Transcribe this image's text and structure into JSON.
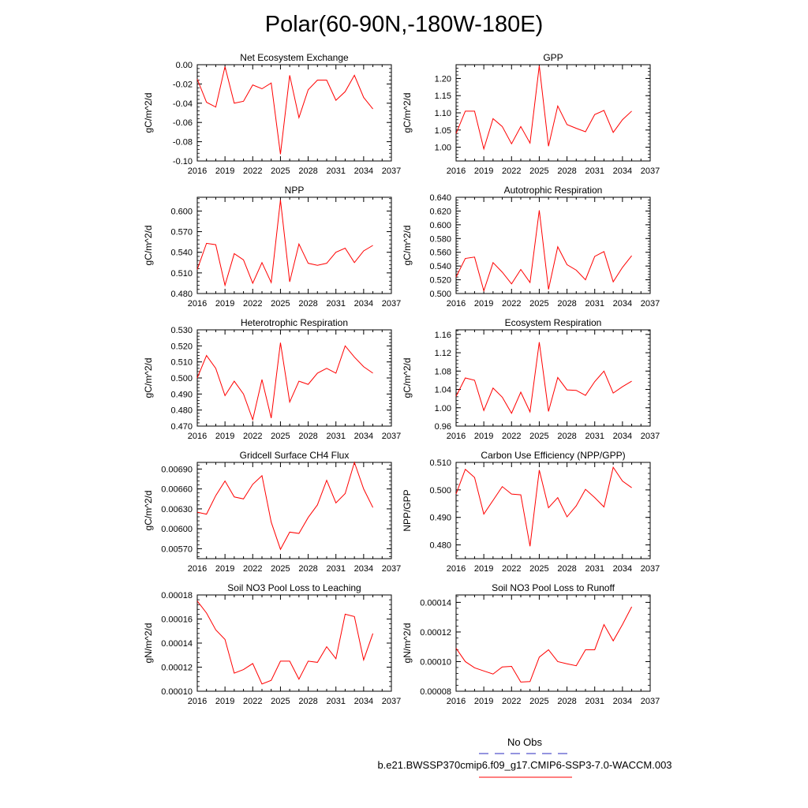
{
  "title": "Polar(60-90N,-180W-180E)",
  "legend": {
    "obs_label": "No Obs",
    "model_label": "b.e21.BWSSP370cmip6.f09_g17.CMIP6-SSP3-7.0-WACCM.003",
    "obs_color": "#5555cc",
    "model_color": "#ff0000"
  },
  "chart_data": [
    {
      "type": "line",
      "title": "Net Ecosystem Exchange",
      "xlabel": "",
      "ylabel": "gC/m^2/d",
      "xlim": [
        2016,
        2037
      ],
      "x_ticks": [
        2016,
        2019,
        2022,
        2025,
        2028,
        2031,
        2034,
        2037
      ],
      "ylim": [
        -0.1,
        0.0
      ],
      "y_ticks": [
        -0.1,
        -0.08,
        -0.06,
        -0.04,
        -0.02,
        0.0
      ],
      "y_tick_labels": [
        "-0.10",
        "-0.08",
        "-0.06",
        "-0.04",
        "-0.02",
        "0.00"
      ],
      "series": [
        {
          "name": "b.e21.BWSSP370cmip6.f09_g17.CMIP6-SSP3-7.0-WACCM.003",
          "color": "#ff0000",
          "x": [
            2016,
            2017,
            2018,
            2019,
            2020,
            2021,
            2022,
            2023,
            2024,
            2025,
            2026,
            2027,
            2028,
            2029,
            2030,
            2031,
            2032,
            2033,
            2034,
            2035
          ],
          "values": [
            -0.015,
            -0.039,
            -0.044,
            -0.002,
            -0.04,
            -0.038,
            -0.021,
            -0.025,
            -0.019,
            -0.093,
            -0.011,
            -0.055,
            -0.026,
            -0.016,
            -0.016,
            -0.037,
            -0.028,
            -0.011,
            -0.034,
            -0.046
          ]
        }
      ]
    },
    {
      "type": "line",
      "title": "GPP",
      "xlabel": "",
      "ylabel": "gC/m^2/d",
      "xlim": [
        2016,
        2037
      ],
      "x_ticks": [
        2016,
        2019,
        2022,
        2025,
        2028,
        2031,
        2034,
        2037
      ],
      "ylim": [
        0.96,
        1.24
      ],
      "y_ticks": [
        1.0,
        1.05,
        1.1,
        1.15,
        1.2
      ],
      "y_tick_labels": [
        "1.00",
        "1.05",
        "1.10",
        "1.15",
        "1.20"
      ],
      "series": [
        {
          "name": "b.e21.BWSSP370cmip6.f09_g17.CMIP6-SSP3-7.0-WACCM.003",
          "color": "#ff0000",
          "x": [
            2016,
            2017,
            2018,
            2019,
            2020,
            2021,
            2022,
            2023,
            2024,
            2025,
            2026,
            2027,
            2028,
            2029,
            2030,
            2031,
            2032,
            2033,
            2034,
            2035
          ],
          "values": [
            1.04,
            1.105,
            1.105,
            0.995,
            1.083,
            1.06,
            1.01,
            1.06,
            1.012,
            1.237,
            1.003,
            1.12,
            1.066,
            1.055,
            1.045,
            1.095,
            1.107,
            1.043,
            1.08,
            1.105
          ]
        }
      ]
    },
    {
      "type": "line",
      "title": "NPP",
      "xlabel": "",
      "ylabel": "gC/m^2/d",
      "xlim": [
        2016,
        2037
      ],
      "x_ticks": [
        2016,
        2019,
        2022,
        2025,
        2028,
        2031,
        2034,
        2037
      ],
      "ylim": [
        0.48,
        0.62
      ],
      "y_ticks": [
        0.48,
        0.51,
        0.54,
        0.57,
        0.6
      ],
      "y_tick_labels": [
        "0.480",
        "0.510",
        "0.540",
        "0.570",
        "0.600"
      ],
      "series": [
        {
          "name": "b.e21.BWSSP370cmip6.f09_g17.CMIP6-SSP3-7.0-WACCM.003",
          "color": "#ff0000",
          "x": [
            2016,
            2017,
            2018,
            2019,
            2020,
            2021,
            2022,
            2023,
            2024,
            2025,
            2026,
            2027,
            2028,
            2029,
            2030,
            2031,
            2032,
            2033,
            2034,
            2035
          ],
          "values": [
            0.515,
            0.553,
            0.551,
            0.492,
            0.538,
            0.529,
            0.495,
            0.525,
            0.496,
            0.616,
            0.497,
            0.552,
            0.524,
            0.521,
            0.524,
            0.54,
            0.546,
            0.525,
            0.542,
            0.55
          ]
        }
      ]
    },
    {
      "type": "line",
      "title": "Autotrophic Respiration",
      "xlabel": "",
      "ylabel": "gC/m^2/d",
      "xlim": [
        2016,
        2037
      ],
      "x_ticks": [
        2016,
        2019,
        2022,
        2025,
        2028,
        2031,
        2034,
        2037
      ],
      "ylim": [
        0.5,
        0.64
      ],
      "y_ticks": [
        0.5,
        0.52,
        0.54,
        0.56,
        0.58,
        0.6,
        0.62,
        0.64
      ],
      "y_tick_labels": [
        "0.500",
        "0.520",
        "0.540",
        "0.560",
        "0.580",
        "0.600",
        "0.620",
        "0.640"
      ],
      "series": [
        {
          "name": "b.e21.BWSSP370cmip6.f09_g17.CMIP6-SSP3-7.0-WACCM.003",
          "color": "#ff0000",
          "x": [
            2016,
            2017,
            2018,
            2019,
            2020,
            2021,
            2022,
            2023,
            2024,
            2025,
            2026,
            2027,
            2028,
            2029,
            2030,
            2031,
            2032,
            2033,
            2034,
            2035
          ],
          "values": [
            0.524,
            0.551,
            0.553,
            0.504,
            0.545,
            0.531,
            0.514,
            0.535,
            0.516,
            0.621,
            0.506,
            0.568,
            0.542,
            0.534,
            0.52,
            0.554,
            0.561,
            0.517,
            0.538,
            0.555
          ]
        }
      ]
    },
    {
      "type": "line",
      "title": "Heterotrophic Respiration",
      "xlabel": "",
      "ylabel": "gC/m^2/d",
      "xlim": [
        2016,
        2037
      ],
      "x_ticks": [
        2016,
        2019,
        2022,
        2025,
        2028,
        2031,
        2034,
        2037
      ],
      "ylim": [
        0.47,
        0.53
      ],
      "y_ticks": [
        0.47,
        0.48,
        0.49,
        0.5,
        0.51,
        0.52,
        0.53
      ],
      "y_tick_labels": [
        "0.470",
        "0.480",
        "0.490",
        "0.500",
        "0.510",
        "0.520",
        "0.530"
      ],
      "series": [
        {
          "name": "b.e21.BWSSP370cmip6.f09_g17.CMIP6-SSP3-7.0-WACCM.003",
          "color": "#ff0000",
          "x": [
            2016,
            2017,
            2018,
            2019,
            2020,
            2021,
            2022,
            2023,
            2024,
            2025,
            2026,
            2027,
            2028,
            2029,
            2030,
            2031,
            2032,
            2033,
            2034,
            2035
          ],
          "values": [
            0.5,
            0.514,
            0.506,
            0.489,
            0.498,
            0.49,
            0.474,
            0.499,
            0.475,
            0.522,
            0.485,
            0.498,
            0.496,
            0.503,
            0.506,
            0.503,
            0.52,
            0.513,
            0.507,
            0.503
          ]
        }
      ]
    },
    {
      "type": "line",
      "title": "Ecosystem Respiration",
      "xlabel": "",
      "ylabel": "gC/m^2/d",
      "xlim": [
        2016,
        2037
      ],
      "x_ticks": [
        2016,
        2019,
        2022,
        2025,
        2028,
        2031,
        2034,
        2037
      ],
      "ylim": [
        0.96,
        1.17
      ],
      "y_ticks": [
        0.96,
        1.0,
        1.04,
        1.08,
        1.12,
        1.16
      ],
      "y_tick_labels": [
        "0.96",
        "1.00",
        "1.04",
        "1.08",
        "1.12",
        "1.16"
      ],
      "series": [
        {
          "name": "b.e21.BWSSP370cmip6.f09_g17.CMIP6-SSP3-7.0-WACCM.003",
          "color": "#ff0000",
          "x": [
            2016,
            2017,
            2018,
            2019,
            2020,
            2021,
            2022,
            2023,
            2024,
            2025,
            2026,
            2027,
            2028,
            2029,
            2030,
            2031,
            2032,
            2033,
            2034,
            2035
          ],
          "values": [
            1.025,
            1.065,
            1.06,
            0.994,
            1.043,
            1.023,
            0.988,
            1.034,
            0.991,
            1.143,
            0.992,
            1.066,
            1.039,
            1.038,
            1.027,
            1.057,
            1.08,
            1.032,
            1.046,
            1.058
          ]
        }
      ]
    },
    {
      "type": "line",
      "title": "Gridcell Surface CH4 Flux",
      "xlabel": "",
      "ylabel": "gC/m^2/d",
      "xlim": [
        2016,
        2037
      ],
      "x_ticks": [
        2016,
        2019,
        2022,
        2025,
        2028,
        2031,
        2034,
        2037
      ],
      "ylim": [
        0.00555,
        0.007
      ],
      "y_ticks": [
        0.0057,
        0.006,
        0.0063,
        0.0066,
        0.0069
      ],
      "y_tick_labels": [
        "0.00570",
        "0.00600",
        "0.00630",
        "0.00660",
        "0.00690"
      ],
      "series": [
        {
          "name": "b.e21.BWSSP370cmip6.f09_g17.CMIP6-SSP3-7.0-WACCM.003",
          "color": "#ff0000",
          "x": [
            2016,
            2017,
            2018,
            2019,
            2020,
            2021,
            2022,
            2023,
            2024,
            2025,
            2026,
            2027,
            2028,
            2029,
            2030,
            2031,
            2032,
            2033,
            2034,
            2035
          ],
          "values": [
            0.00625,
            0.00622,
            0.0065,
            0.00672,
            0.00648,
            0.00645,
            0.00667,
            0.0068,
            0.0061,
            0.00569,
            0.00595,
            0.00593,
            0.00617,
            0.00636,
            0.00673,
            0.00639,
            0.00653,
            0.007,
            0.0066,
            0.00632
          ]
        }
      ]
    },
    {
      "type": "line",
      "title": "Carbon Use Efficiency (NPP/GPP)",
      "xlabel": "",
      "ylabel": "NPP/GPP",
      "xlim": [
        2016,
        2037
      ],
      "x_ticks": [
        2016,
        2019,
        2022,
        2025,
        2028,
        2031,
        2034,
        2037
      ],
      "ylim": [
        0.475,
        0.51
      ],
      "y_ticks": [
        0.48,
        0.49,
        0.5,
        0.51
      ],
      "y_tick_labels": [
        "0.480",
        "0.490",
        "0.500",
        "0.510"
      ],
      "series": [
        {
          "name": "b.e21.BWSSP370cmip6.f09_g17.CMIP6-SSP3-7.0-WACCM.003",
          "color": "#ff0000",
          "x": [
            2016,
            2017,
            2018,
            2019,
            2020,
            2021,
            2022,
            2023,
            2024,
            2025,
            2026,
            2027,
            2028,
            2029,
            2030,
            2031,
            2032,
            2033,
            2034,
            2035
          ],
          "values": [
            0.4985,
            0.5075,
            0.5045,
            0.4912,
            0.4962,
            0.5012,
            0.4985,
            0.4982,
            0.4795,
            0.5072,
            0.4935,
            0.4972,
            0.4902,
            0.4942,
            0.5002,
            0.4972,
            0.4938,
            0.5082,
            0.5032,
            0.5008
          ]
        }
      ]
    },
    {
      "type": "line",
      "title": "Soil NO3 Pool Loss to Leaching",
      "xlabel": "",
      "ylabel": "gN/m^2/d",
      "xlim": [
        2016,
        2037
      ],
      "x_ticks": [
        2016,
        2019,
        2022,
        2025,
        2028,
        2031,
        2034,
        2037
      ],
      "ylim": [
        0.0001,
        0.00018
      ],
      "y_ticks": [
        0.0001,
        0.00012,
        0.00014,
        0.00016,
        0.00018
      ],
      "y_tick_labels": [
        "0.00010",
        "0.00012",
        "0.00014",
        "0.00016",
        "0.00018"
      ],
      "series": [
        {
          "name": "b.e21.BWSSP370cmip6.f09_g17.CMIP6-SSP3-7.0-WACCM.003",
          "color": "#ff0000",
          "x": [
            2016,
            2017,
            2018,
            2019,
            2020,
            2021,
            2022,
            2023,
            2024,
            2025,
            2026,
            2027,
            2028,
            2029,
            2030,
            2031,
            2032,
            2033,
            2034,
            2035
          ],
          "values": [
            0.000175,
            0.000165,
            0.000151,
            0.000143,
            0.000115,
            0.000118,
            0.000123,
            0.000106,
            0.000109,
            0.000125,
            0.000125,
            0.00011,
            0.000125,
            0.000124,
            0.000137,
            0.000127,
            0.000164,
            0.000162,
            0.000126,
            0.000148
          ]
        }
      ]
    },
    {
      "type": "line",
      "title": "Soil NO3 Pool Loss to Runoff",
      "xlabel": "",
      "ylabel": "gN/m^2/d",
      "xlim": [
        2016,
        2037
      ],
      "x_ticks": [
        2016,
        2019,
        2022,
        2025,
        2028,
        2031,
        2034,
        2037
      ],
      "ylim": [
        8e-05,
        0.000145
      ],
      "y_ticks": [
        8e-05,
        0.0001,
        0.00012,
        0.00014
      ],
      "y_tick_labels": [
        "0.00008",
        "0.00010",
        "0.00012",
        "0.00014"
      ],
      "series": [
        {
          "name": "b.e21.BWSSP370cmip6.f09_g17.CMIP6-SSP3-7.0-WACCM.003",
          "color": "#ff0000",
          "x": [
            2016,
            2017,
            2018,
            2019,
            2020,
            2021,
            2022,
            2023,
            2024,
            2025,
            2026,
            2027,
            2028,
            2029,
            2030,
            2031,
            2032,
            2033,
            2034,
            2035
          ],
          "values": [
            0.000109,
            0.0001,
            9.58e-05,
            9.37e-05,
            9.16e-05,
            9.64e-05,
            9.68e-05,
            8.62e-05,
            8.65e-05,
            0.000103,
            0.000108,
            0.0001,
            9.85e-05,
            9.72e-05,
            0.000108,
            0.000108,
            0.000125,
            0.000114,
            0.000125,
            0.000137
          ]
        }
      ]
    }
  ]
}
